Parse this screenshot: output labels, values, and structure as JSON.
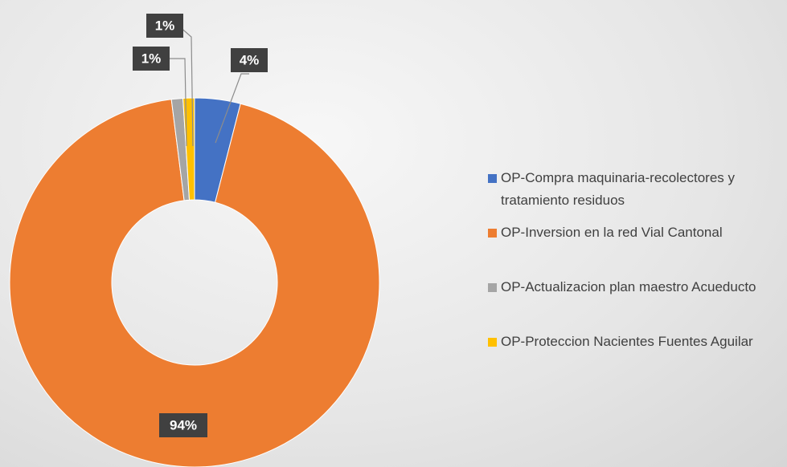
{
  "chart_data": {
    "type": "donut",
    "categories": [
      "OP-Compra maquinaria-recolectores y tratamiento residuos",
      "OP-Inversion en la red Vial Cantonal",
      "OP-Actualizacion plan maestro Acueducto",
      "OP-Proteccion Nacientes Fuentes Aguilar"
    ],
    "values": [
      4,
      94,
      1,
      1
    ],
    "value_labels": [
      "4%",
      "94%",
      "1%",
      "1%"
    ],
    "colors": [
      "#4472c4",
      "#ed7d31",
      "#a5a5a5",
      "#ffc000"
    ],
    "legend": "right"
  }
}
